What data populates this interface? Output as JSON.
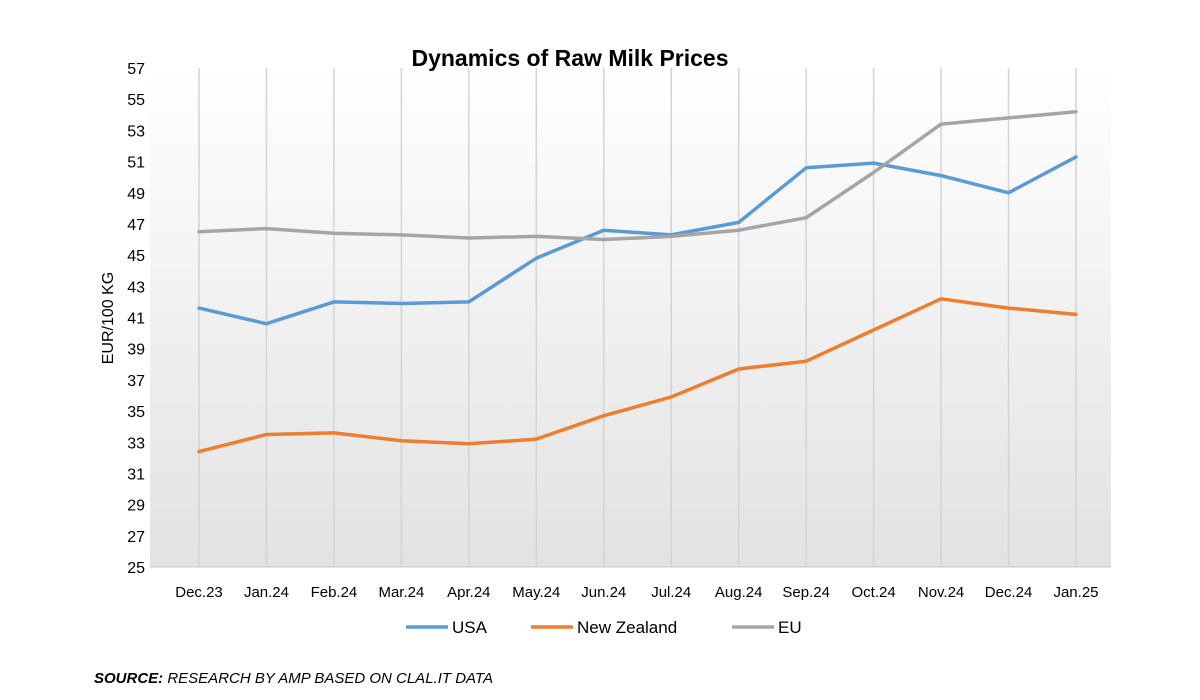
{
  "chart_data": {
    "type": "line",
    "title": "Dynamics of Raw Milk Prices",
    "xlabel": "",
    "ylabel": "EUR/100 KG",
    "ylim": [
      25,
      57
    ],
    "yticks": [
      25,
      27,
      29,
      31,
      33,
      35,
      37,
      39,
      41,
      43,
      45,
      47,
      49,
      51,
      53,
      55,
      57
    ],
    "categories": [
      "Dec.23",
      "Jan.24",
      "Feb.24",
      "Mar.24",
      "Apr.24",
      "May.24",
      "Jun.24",
      "Jul.24",
      "Aug.24",
      "Sep.24",
      "Oct.24",
      "Nov.24",
      "Dec.24",
      "Jan.25"
    ],
    "series": [
      {
        "name": "USA",
        "color": "#5B9BD5",
        "values": [
          41.6,
          40.6,
          42.0,
          41.9,
          42.0,
          44.8,
          46.6,
          46.3,
          47.1,
          50.6,
          50.9,
          50.1,
          49.0,
          51.3
        ]
      },
      {
        "name": "New Zealand",
        "color": "#ED7D31",
        "values": [
          32.4,
          33.5,
          33.6,
          33.1,
          32.9,
          33.2,
          34.7,
          35.9,
          37.7,
          38.2,
          40.2,
          42.2,
          41.6,
          41.2
        ]
      },
      {
        "name": "EU",
        "color": "#A5A5A5",
        "values": [
          46.5,
          46.7,
          46.4,
          46.3,
          46.1,
          46.2,
          46.0,
          46.2,
          46.6,
          47.4,
          50.3,
          53.4,
          53.8,
          54.2
        ]
      }
    ],
    "grid": "vertical",
    "legend_position": "bottom"
  },
  "source": {
    "key": "SOURCE:",
    "text": " RESEARCH BY AMP BASED ON CLAL.IT DATA"
  }
}
